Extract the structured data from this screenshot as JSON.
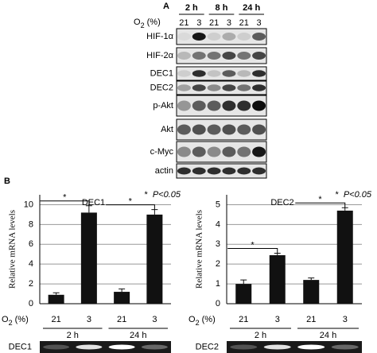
{
  "panel_a": {
    "label": "A",
    "o2_label": {
      "base": "O",
      "sub": "2",
      "unit": " (%)"
    },
    "times": [
      "2 h",
      "8 h",
      "24 h"
    ],
    "o2_levels": [
      "21",
      "3",
      "21",
      "3",
      "21",
      "3"
    ],
    "proteins": [
      "HIF-1α",
      "HIF-2α",
      "DEC1",
      "DEC2",
      "p-Akt",
      "Akt",
      "c-Myc",
      "actin"
    ]
  },
  "panel_b": {
    "label": "B"
  },
  "chart_data": [
    {
      "type": "bar",
      "title": "DEC1",
      "y_label": "Relative mRNA levels",
      "x_label": {
        "base": "O",
        "sub": "2",
        "unit": " (%)"
      },
      "categories": [
        "21",
        "3",
        "21",
        "3"
      ],
      "groups": [
        "2 h",
        "24 h"
      ],
      "gel_label": "DEC1",
      "values": [
        0.9,
        9.2,
        1.2,
        9.0
      ],
      "errors": [
        0.2,
        0.7,
        0.3,
        0.5
      ],
      "color": "#111111",
      "ylim": [
        0,
        11
      ],
      "yticks": [
        0,
        2,
        4,
        6,
        8,
        10
      ],
      "grid": true,
      "significance": [
        "*",
        "*"
      ],
      "note": {
        "star": "*",
        "text": "P<0.05"
      }
    },
    {
      "type": "bar",
      "title": "DEC2",
      "y_label": "Relative mRNA levels",
      "x_label": {
        "base": "O",
        "sub": "2",
        "unit": " (%)"
      },
      "categories": [
        "21",
        "3",
        "21",
        "3"
      ],
      "groups": [
        "2 h",
        "24 h"
      ],
      "gel_label": "DEC2",
      "values": [
        1.0,
        2.45,
        1.2,
        4.7
      ],
      "errors": [
        0.2,
        0.1,
        0.1,
        0.15
      ],
      "color": "#111111",
      "ylim": [
        0,
        5.5
      ],
      "yticks": [
        0,
        1,
        2,
        3,
        4,
        5
      ],
      "grid": true,
      "significance": [
        "*",
        "*"
      ],
      "note": {
        "star": "*",
        "text": "P<0.05"
      }
    }
  ]
}
